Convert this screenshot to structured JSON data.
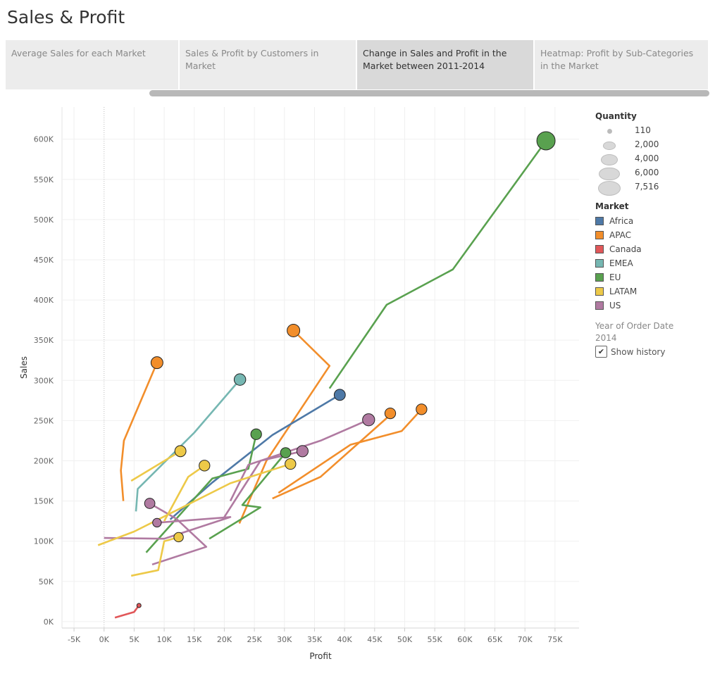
{
  "page": {
    "title": "Sales & Profit",
    "tabs": [
      {
        "label": "Average Sales for each Market",
        "active": false
      },
      {
        "label": "Sales & Profit by Customers in Market",
        "active": false
      },
      {
        "label": "Change in Sales and Profit in the Market between 2011-2014",
        "active": true
      },
      {
        "label": "Heatmap: Profit by Sub-Categories in the Market",
        "active": false
      }
    ]
  },
  "legend": {
    "quantity_title": "Quantity",
    "quantity_items": [
      {
        "label": "110",
        "value": 110
      },
      {
        "label": "2,000",
        "value": 2000
      },
      {
        "label": "4,000",
        "value": 4000
      },
      {
        "label": "6,000",
        "value": 6000
      },
      {
        "label": "7,516",
        "value": 7516
      }
    ],
    "market_title": "Market",
    "markets": [
      {
        "name": "Africa",
        "color": "#4e79a7"
      },
      {
        "name": "APAC",
        "color": "#f28e2b"
      },
      {
        "name": "Canada",
        "color": "#e15759"
      },
      {
        "name": "EMEA",
        "color": "#76b7b2"
      },
      {
        "name": "EU",
        "color": "#59a14f"
      },
      {
        "name": "LATAM",
        "color": "#edc948"
      },
      {
        "name": "US",
        "color": "#b07aa1"
      }
    ],
    "year_title": "Year of Order Date",
    "year_value": "2014",
    "show_history_label": "Show history",
    "show_history_checked": true
  },
  "chart_data": {
    "type": "scatter",
    "xlabel": "Profit",
    "ylabel": "Sales",
    "xlim": [
      -7000,
      79000
    ],
    "ylim": [
      -8000,
      640000
    ],
    "xticks": [
      -5000,
      0,
      5000,
      10000,
      15000,
      20000,
      25000,
      30000,
      35000,
      40000,
      45000,
      50000,
      55000,
      60000,
      65000,
      70000,
      75000
    ],
    "xtick_labels": [
      "-5K",
      "0K",
      "5K",
      "10K",
      "15K",
      "20K",
      "25K",
      "30K",
      "35K",
      "40K",
      "45K",
      "50K",
      "55K",
      "60K",
      "65K",
      "70K",
      "75K"
    ],
    "yticks": [
      0,
      50000,
      100000,
      150000,
      200000,
      250000,
      300000,
      350000,
      400000,
      450000,
      500000,
      550000,
      600000
    ],
    "ytick_labels": [
      "0K",
      "50K",
      "100K",
      "150K",
      "200K",
      "250K",
      "300K",
      "350K",
      "400K",
      "450K",
      "500K",
      "550K",
      "600K"
    ],
    "grid": true,
    "legend_position": "right",
    "series": [
      {
        "market": "EU",
        "color": "#59a14f",
        "points": [
          [
            37500,
            290000
          ],
          [
            47000,
            394000
          ],
          [
            58000,
            438000
          ],
          [
            73500,
            598000
          ]
        ],
        "quantity": 7516
      },
      {
        "market": "APAC",
        "color": "#f28e2b",
        "points": [
          [
            3200,
            150000
          ],
          [
            2800,
            188000
          ],
          [
            3300,
            225000
          ],
          [
            8800,
            322000
          ]
        ],
        "quantity": 3200
      },
      {
        "market": "APAC",
        "color": "#f28e2b",
        "points": [
          [
            22500,
            122000
          ],
          [
            27000,
            200000
          ],
          [
            37500,
            318000
          ],
          [
            31500,
            362000
          ]
        ],
        "quantity": 3600
      },
      {
        "market": "APAC",
        "color": "#f28e2b",
        "points": [
          [
            28000,
            153000
          ],
          [
            36000,
            180000
          ],
          [
            47000,
            253000
          ],
          [
            47600,
            259000
          ]
        ],
        "quantity": 2600
      },
      {
        "market": "APAC",
        "color": "#f28e2b",
        "points": [
          [
            29000,
            160000
          ],
          [
            41000,
            220000
          ],
          [
            49500,
            237000
          ],
          [
            52800,
            264000
          ]
        ],
        "quantity": 2600
      },
      {
        "market": "EMEA",
        "color": "#76b7b2",
        "points": [
          [
            5300,
            137000
          ],
          [
            5600,
            165000
          ],
          [
            15000,
            235000
          ],
          [
            22600,
            301000
          ]
        ],
        "quantity": 3000
      },
      {
        "market": "Africa",
        "color": "#4e79a7",
        "points": [
          [
            11000,
            127000
          ],
          [
            18000,
            173000
          ],
          [
            28000,
            232000
          ],
          [
            39200,
            282000
          ]
        ],
        "quantity": 2800
      },
      {
        "market": "EU",
        "color": "#59a14f",
        "points": [
          [
            7000,
            86000
          ],
          [
            18000,
            178000
          ],
          [
            24000,
            190000
          ],
          [
            25300,
            233000
          ]
        ],
        "quantity": 2600
      },
      {
        "market": "EU",
        "color": "#59a14f",
        "points": [
          [
            17500,
            103000
          ],
          [
            26000,
            142000
          ],
          [
            23000,
            145000
          ],
          [
            30200,
            210000
          ]
        ],
        "quantity": 2400
      },
      {
        "market": "US",
        "color": "#b07aa1",
        "points": [
          [
            21000,
            150000
          ],
          [
            24000,
            195000
          ],
          [
            36000,
            225000
          ],
          [
            44000,
            251000
          ]
        ],
        "quantity": 3300
      },
      {
        "market": "US",
        "color": "#b07aa1",
        "points": [
          [
            20000,
            130000
          ],
          [
            26000,
            200000
          ],
          [
            33000,
            212000
          ]
        ],
        "quantity": 2900
      },
      {
        "market": "US",
        "color": "#b07aa1",
        "points": [
          [
            8000,
            71000
          ],
          [
            17000,
            93000
          ],
          [
            12000,
            128000
          ],
          [
            7600,
            147000
          ]
        ],
        "quantity": 2400
      },
      {
        "market": "US",
        "color": "#b07aa1",
        "points": [
          [
            0,
            104000
          ],
          [
            10000,
            103000
          ],
          [
            21000,
            130000
          ],
          [
            8800,
            123000
          ]
        ],
        "quantity": 1700
      },
      {
        "market": "LATAM",
        "color": "#edc948",
        "points": [
          [
            4500,
            175000
          ],
          [
            12700,
            212000
          ]
        ],
        "quantity": 2800
      },
      {
        "market": "LATAM",
        "color": "#edc948",
        "points": [
          [
            10000,
            125000
          ],
          [
            14000,
            180000
          ],
          [
            16700,
            194000
          ]
        ],
        "quantity": 2600
      },
      {
        "market": "LATAM",
        "color": "#edc948",
        "points": [
          [
            -1000,
            95000
          ],
          [
            5000,
            112000
          ],
          [
            21000,
            172000
          ],
          [
            31000,
            196000
          ]
        ],
        "quantity": 2600
      },
      {
        "market": "LATAM",
        "color": "#edc948",
        "points": [
          [
            4500,
            57000
          ],
          [
            9000,
            64000
          ],
          [
            10000,
            100000
          ],
          [
            12400,
            105000
          ]
        ],
        "quantity": 2000
      },
      {
        "market": "Canada",
        "color": "#e15759",
        "points": [
          [
            1800,
            5000
          ],
          [
            5000,
            12000
          ],
          [
            5800,
            20000
          ]
        ],
        "quantity": 110
      }
    ]
  }
}
